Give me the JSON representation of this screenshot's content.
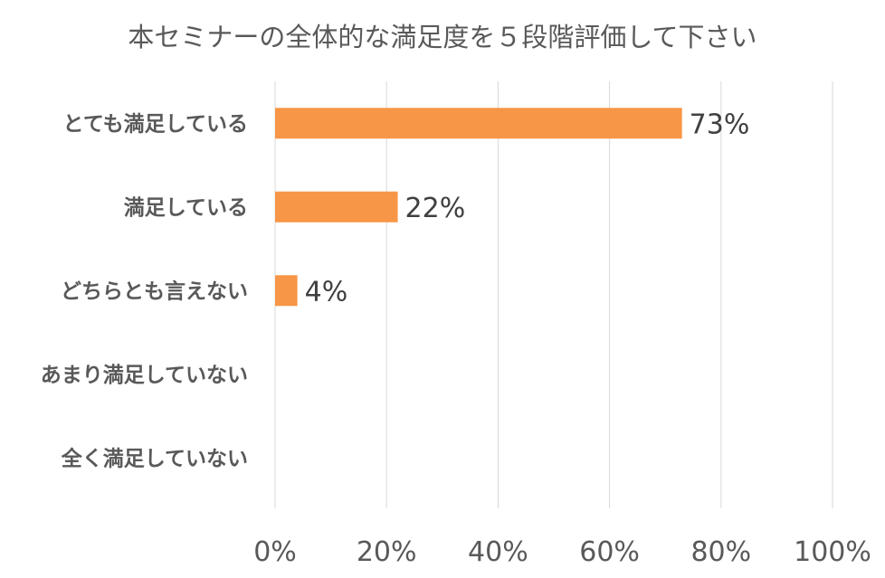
{
  "chart_data": {
    "type": "bar",
    "orientation": "horizontal",
    "title": "本セミナーの全体的な満足度を５段階評価して下さい",
    "categories": [
      "とても満足している",
      "満足している",
      "どちらとも言えない",
      "あまり満足していない",
      "全く満足していない"
    ],
    "values": [
      73,
      22,
      4,
      0,
      0
    ],
    "data_labels": [
      "73%",
      "22%",
      "4%",
      "",
      ""
    ],
    "xlim": [
      0,
      100
    ],
    "x_ticks": [
      0,
      20,
      40,
      60,
      80,
      100
    ],
    "x_tick_labels": [
      "0%",
      "20%",
      "40%",
      "60%",
      "80%",
      "100%"
    ],
    "xlabel": "",
    "ylabel": "",
    "grid": "vertical",
    "legend": "none",
    "bar_color": "#F79646",
    "grid_color": "#D9D9D9"
  }
}
